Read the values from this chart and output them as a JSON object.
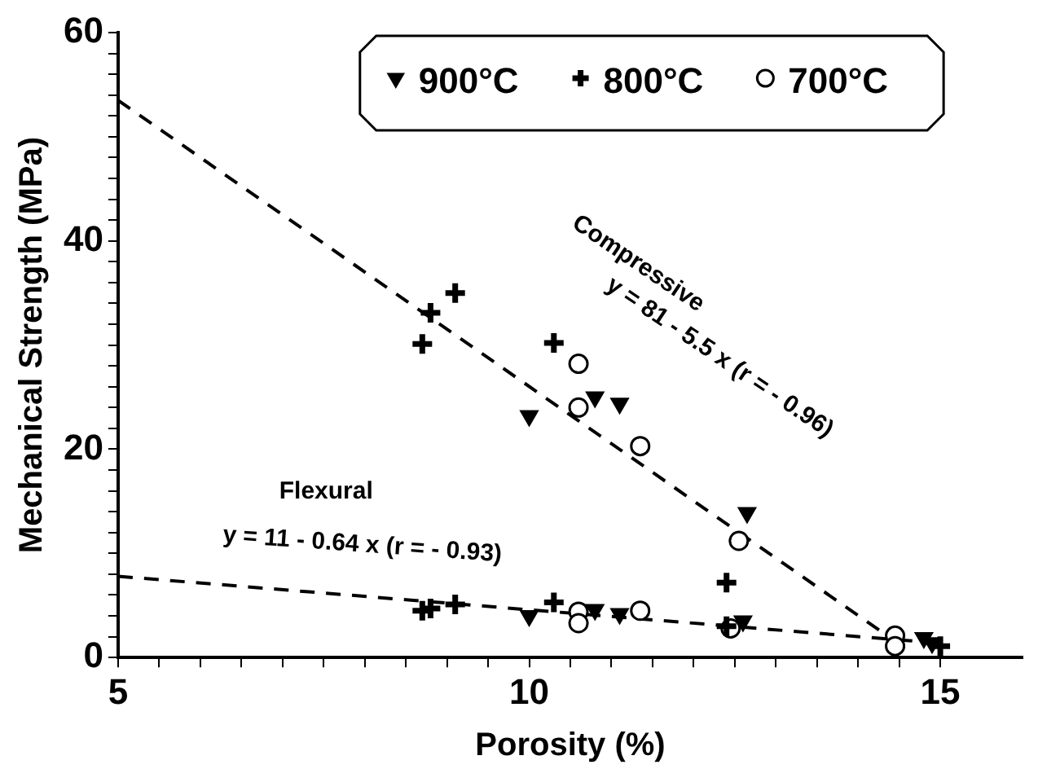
{
  "chart_data": {
    "type": "scatter",
    "xlabel": "Porosity (%)",
    "ylabel": "Mechanical Strength (MPa)",
    "xlim": [
      5,
      16
    ],
    "xticks": [
      5,
      {
        "value": 5.5,
        "label": null
      },
      {
        "value": 6,
        "label": null
      },
      {
        "value": 6.5,
        "label": null
      },
      {
        "value": 7,
        "label": null
      },
      {
        "value": 7.5,
        "label": null
      },
      {
        "value": 8,
        "label": null
      },
      {
        "value": 8.5,
        "label": null
      },
      {
        "value": 9,
        "label": null
      },
      {
        "value": 9.5,
        "label": null
      },
      10,
      {
        "value": 10.5,
        "label": null
      },
      {
        "value": 11,
        "label": null
      },
      {
        "value": 11.5,
        "label": null
      },
      {
        "value": 12,
        "label": null
      },
      {
        "value": 12.5,
        "label": null
      },
      {
        "value": 13,
        "label": null
      },
      {
        "value": 13.5,
        "label": null
      },
      {
        "value": 14,
        "label": null
      },
      {
        "value": 14.5,
        "label": null
      },
      15
    ],
    "ylim": [
      0,
      60
    ],
    "yticks": [
      0,
      {
        "value": 2,
        "label": null
      },
      {
        "value": 4,
        "label": null
      },
      {
        "value": 6,
        "label": null
      },
      {
        "value": 8,
        "label": null
      },
      {
        "value": 10,
        "label": null
      },
      {
        "value": 12,
        "label": null
      },
      {
        "value": 14,
        "label": null
      },
      {
        "value": 16,
        "label": null
      },
      {
        "value": 18,
        "label": null
      },
      20,
      {
        "value": 22,
        "label": null
      },
      {
        "value": 24,
        "label": null
      },
      {
        "value": 26,
        "label": null
      },
      {
        "value": 28,
        "label": null
      },
      {
        "value": 30,
        "label": null
      },
      {
        "value": 32,
        "label": null
      },
      {
        "value": 34,
        "label": null
      },
      {
        "value": 36,
        "label": null
      },
      {
        "value": 38,
        "label": null
      },
      40,
      {
        "value": 42,
        "label": null
      },
      {
        "value": 44,
        "label": null
      },
      {
        "value": 46,
        "label": null
      },
      {
        "value": 48,
        "label": null
      },
      {
        "value": 50,
        "label": null
      },
      {
        "value": 52,
        "label": null
      },
      {
        "value": 54,
        "label": null
      },
      {
        "value": 56,
        "label": null
      },
      {
        "value": 58,
        "label": null
      },
      60
    ],
    "grid": false,
    "legend": "top",
    "series": [
      {
        "name": "900°C",
        "color": "#000000",
        "marker": "triangle",
        "x": [
          10.0,
          10.8,
          11.1,
          12.65,
          10.0,
          10.8,
          11.1,
          12.6,
          14.8,
          14.9
        ],
        "values": [
          23.2,
          25.0,
          24.4,
          13.9,
          4.0,
          4.6,
          4.2,
          3.5,
          1.9,
          1.4
        ]
      },
      {
        "name": "800°C",
        "color": "#000000",
        "marker": "cross",
        "x": [
          8.7,
          8.8,
          9.1,
          10.3,
          12.4,
          8.7,
          8.8,
          9.1,
          10.3,
          12.4,
          15.0
        ],
        "values": [
          30.1,
          33.1,
          35.0,
          30.2,
          7.2,
          4.5,
          4.7,
          5.1,
          5.3,
          3.0,
          1.1
        ]
      },
      {
        "name": "700°C",
        "color": "#000000",
        "marker": "circle",
        "x": [
          10.6,
          10.6,
          11.35,
          12.55,
          10.6,
          10.6,
          11.35,
          12.45,
          14.45,
          14.45
        ],
        "values": [
          28.2,
          24.0,
          20.3,
          11.2,
          4.4,
          3.3,
          4.5,
          2.8,
          2.1,
          1.1
        ]
      },
      {
        "type": "line",
        "color": "#000000",
        "marker": "none",
        "line_style": "dashed",
        "x": [
          5,
          14.5
        ],
        "values": [
          53.5,
          1.3
        ]
      },
      {
        "type": "line",
        "color": "#000000",
        "marker": "none",
        "line_style": "dashed",
        "x": [
          5,
          14.8
        ],
        "values": [
          7.8,
          1.5
        ]
      }
    ],
    "annotations": [
      "Compressive",
      "y = 81 - 5.5 x (r = - 0.96)",
      "Flexural",
      "y = 11 - 0.64 x (r = - 0.93)"
    ]
  }
}
